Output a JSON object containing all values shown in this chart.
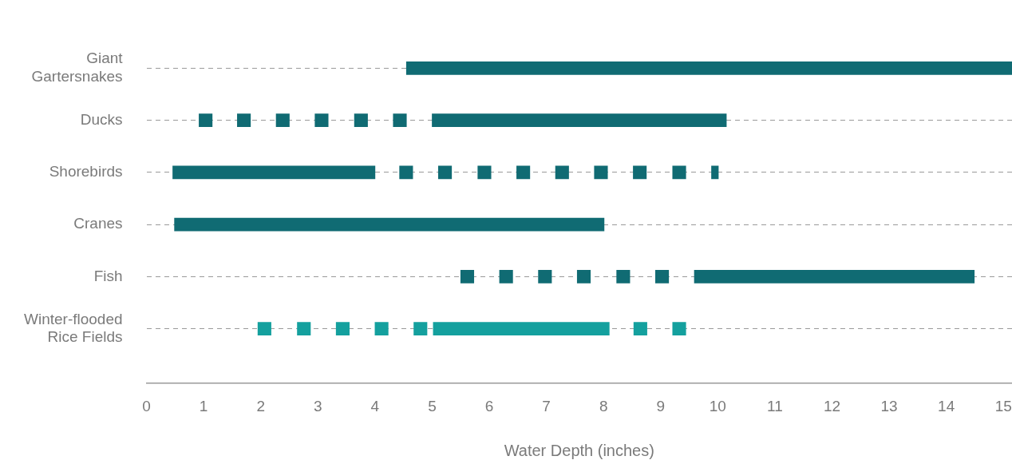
{
  "chart_data": {
    "type": "bar",
    "orientation": "horizontal",
    "xlabel": "Water Depth (inches)",
    "categories": [
      "Giant Gartersnakes",
      "Ducks",
      "Shorebirds",
      "Cranes",
      "Fish",
      "Winter-flooded Rice Fields"
    ],
    "xlim": [
      0,
      15.15
    ],
    "xticks": [
      0,
      1,
      2,
      3,
      4,
      5,
      6,
      7,
      8,
      9,
      10,
      11,
      12,
      13,
      14,
      15
    ],
    "grid": "y",
    "legend": false,
    "series": [
      {
        "colors": [
          "#106b73",
          "#106b73",
          "#106b73",
          "#106b73",
          "#106b73",
          "#14a09e"
        ],
        "base": [
          4.55,
          0.92,
          0.46,
          0.49,
          5.5,
          1.95
        ],
        "values": [
          10.6,
          0.23,
          3.54,
          7.52,
          0.23,
          0.23
        ]
      },
      {
        "colors": [
          "#106b73",
          "#106b73",
          "#106b73",
          "#106b73",
          "#106b73",
          "#14a09e"
        ],
        "base": [
          null,
          1.59,
          4.43,
          null,
          6.18,
          2.64
        ],
        "values": [
          null,
          0.23,
          0.23,
          null,
          0.23,
          0.23
        ]
      },
      {
        "colors": [
          "#106b73",
          "#106b73",
          "#106b73",
          "#106b73",
          "#106b73",
          "#14a09e"
        ],
        "base": [
          null,
          2.27,
          5.11,
          null,
          6.86,
          3.32
        ],
        "values": [
          null,
          0.23,
          0.23,
          null,
          0.23,
          0.23
        ]
      },
      {
        "colors": [
          "#106b73",
          "#106b73",
          "#106b73",
          "#106b73",
          "#106b73",
          "#14a09e"
        ],
        "base": [
          null,
          2.95,
          5.8,
          null,
          7.54,
          4.0
        ],
        "values": [
          null,
          0.23,
          0.23,
          null,
          0.23,
          0.23
        ]
      },
      {
        "colors": [
          "#106b73",
          "#106b73",
          "#106b73",
          "#106b73",
          "#106b73",
          "#14a09e"
        ],
        "base": [
          null,
          3.64,
          6.48,
          null,
          8.23,
          4.68
        ],
        "values": [
          null,
          0.23,
          0.23,
          null,
          0.23,
          0.23
        ]
      },
      {
        "colors": [
          "#106b73",
          "#106b73",
          "#106b73",
          "#106b73",
          "#106b73",
          "#14a09e"
        ],
        "base": [
          null,
          4.32,
          7.16,
          null,
          8.91,
          5.02
        ],
        "values": [
          null,
          0.23,
          0.23,
          null,
          0.23,
          3.08
        ]
      },
      {
        "colors": [
          "#106b73",
          "#106b73",
          "#106b73",
          "#106b73",
          "#106b73",
          "#14a09e"
        ],
        "base": [
          null,
          5.0,
          7.84,
          null,
          9.59,
          8.53
        ],
        "values": [
          null,
          5.15,
          0.23,
          null,
          4.9,
          0.23
        ]
      },
      {
        "colors": [
          "#106b73",
          "#106b73",
          "#106b73",
          "#106b73",
          "#106b73",
          "#14a09e"
        ],
        "base": [
          null,
          null,
          8.52,
          null,
          null,
          9.21
        ],
        "values": [
          null,
          null,
          0.23,
          null,
          null,
          0.23
        ]
      },
      {
        "colors": [
          "#106b73",
          "#106b73",
          "#106b73",
          "#106b73",
          "#106b73",
          "#14a09e"
        ],
        "base": [
          null,
          null,
          9.21,
          null,
          null,
          null
        ],
        "values": [
          null,
          null,
          0.23,
          null,
          null,
          null
        ]
      },
      {
        "colors": [
          "#106b73",
          "#106b73",
          "#106b73",
          "#106b73",
          "#106b73",
          "#14a09e"
        ],
        "base": [
          null,
          null,
          9.89,
          null,
          null,
          null
        ],
        "values": [
          null,
          null,
          0.12,
          null,
          null,
          null
        ]
      }
    ]
  }
}
